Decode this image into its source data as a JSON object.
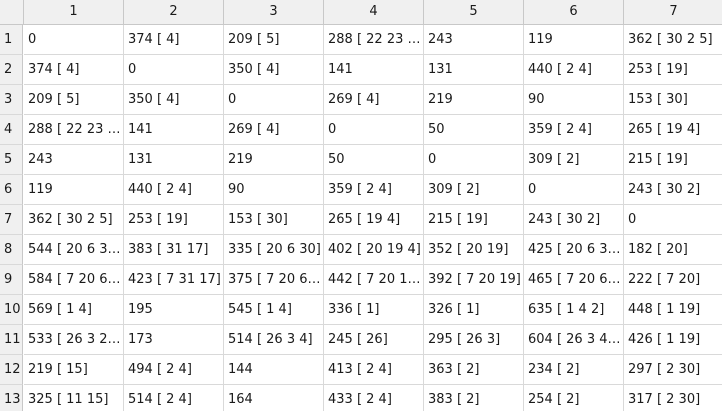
{
  "table": {
    "column_headers": [
      "1",
      "2",
      "3",
      "4",
      "5",
      "6",
      "7"
    ],
    "row_headers": [
      "1",
      "2",
      "3",
      "4",
      "5",
      "6",
      "7",
      "8",
      "9",
      "10",
      "11",
      "12",
      "13"
    ],
    "rows": [
      [
        "0",
        "374 [ 4]",
        "209 [ 5]",
        "288 [ 22 23 …",
        "243",
        "119",
        "362 [ 30 2 5]"
      ],
      [
        "374 [ 4]",
        "0",
        "350 [ 4]",
        "141",
        "131",
        "440 [ 2 4]",
        "253 [ 19]"
      ],
      [
        "209 [ 5]",
        "350 [ 4]",
        "0",
        "269 [ 4]",
        "219",
        "90",
        "153 [ 30]"
      ],
      [
        "288 [ 22 23 …",
        "141",
        "269 [ 4]",
        "0",
        "50",
        "359 [ 2 4]",
        "265 [ 19 4]"
      ],
      [
        "243",
        "131",
        "219",
        "50",
        "0",
        "309 [ 2]",
        "215 [ 19]"
      ],
      [
        "119",
        "440 [ 2 4]",
        "90",
        "359 [ 2 4]",
        "309 [ 2]",
        "0",
        "243 [ 30 2]"
      ],
      [
        "362 [ 30 2 5]",
        "253 [ 19]",
        "153 [ 30]",
        "265 [ 19 4]",
        "215 [ 19]",
        "243 [ 30 2]",
        "0"
      ],
      [
        "544 [ 20 6 3…",
        "383 [ 31 17]",
        "335 [ 20 6 30]",
        "402 [ 20 19 4]",
        "352 [ 20 19]",
        "425 [ 20 6 3…",
        "182 [ 20]"
      ],
      [
        "584 [ 7 20 6…",
        "423 [ 7 31 17]",
        "375 [ 7 20 6…",
        "442 [ 7 20 1…",
        "392 [ 7 20 19]",
        "465 [ 7 20 6…",
        "222 [ 7 20]"
      ],
      [
        "569 [ 1 4]",
        "195",
        "545 [ 1 4]",
        "336 [ 1]",
        "326 [ 1]",
        "635 [ 1 4 2]",
        "448 [ 1 19]"
      ],
      [
        "533 [ 26 3 2…",
        "173",
        "514 [ 26 3 4]",
        "245 [ 26]",
        "295 [ 26 3]",
        "604 [ 26 3 4…",
        "426 [ 1 19]"
      ],
      [
        "219 [ 15]",
        "494 [ 2 4]",
        "144",
        "413 [ 2 4]",
        "363 [ 2]",
        "234 [ 2]",
        "297 [ 2 30]"
      ],
      [
        "325 [ 11 15]",
        "514 [ 2 4]",
        "164",
        "433 [ 2 4]",
        "383 [ 2]",
        "254 [ 2]",
        "317 [ 2 30]"
      ]
    ]
  }
}
